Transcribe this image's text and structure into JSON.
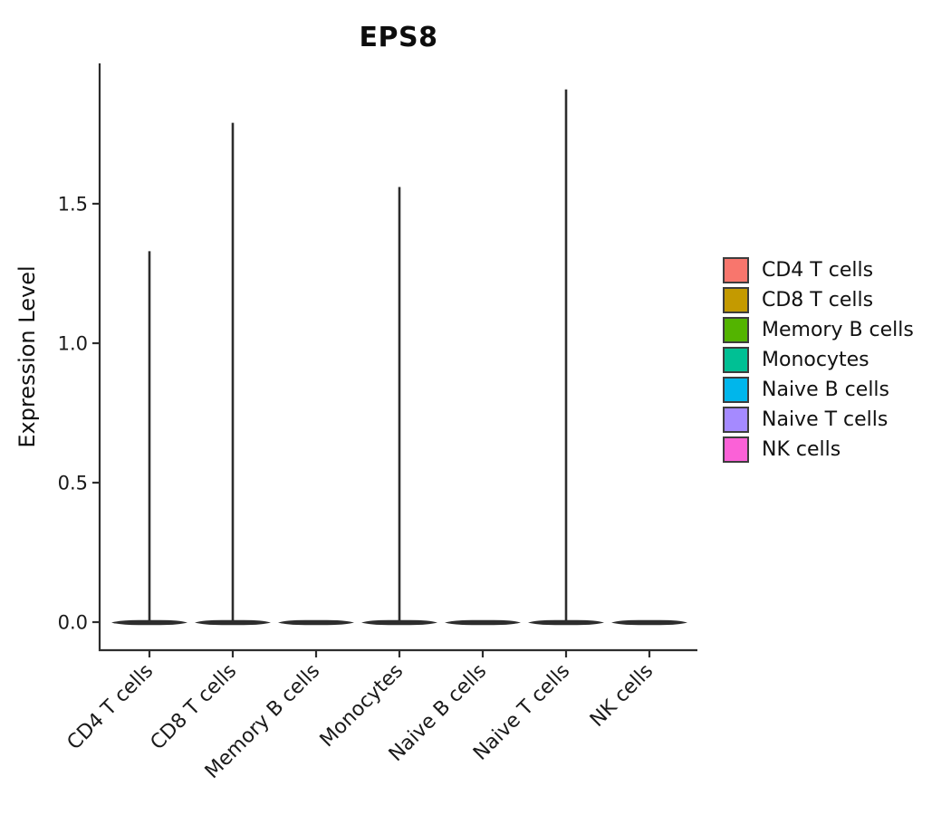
{
  "figure": {
    "title": "EPS8",
    "y_axis_label": "Expression Level"
  },
  "chart_data": {
    "type": "violin",
    "title": "EPS8",
    "xlabel": "",
    "ylabel": "Expression Level",
    "categories": [
      "CD4 T cells",
      "CD8 T cells",
      "Memory B cells",
      "Monocytes",
      "Naive B cells",
      "Naive T cells",
      "NK cells"
    ],
    "violins": [
      {
        "category": "CD4 T cells",
        "color": "#F8766D",
        "baseline_value": 0.0,
        "max_expression": 1.33
      },
      {
        "category": "CD8 T cells",
        "color": "#C49A00",
        "baseline_value": 0.0,
        "max_expression": 1.79
      },
      {
        "category": "Memory B cells",
        "color": "#53B400",
        "baseline_value": 0.0,
        "max_expression": 0.0
      },
      {
        "category": "Monocytes",
        "color": "#00C094",
        "baseline_value": 0.0,
        "max_expression": 1.56
      },
      {
        "category": "Naive B cells",
        "color": "#00B6EB",
        "baseline_value": 0.0,
        "max_expression": 0.0
      },
      {
        "category": "Naive T cells",
        "color": "#A58AFF",
        "baseline_value": 0.0,
        "max_expression": 1.91
      },
      {
        "category": "NK cells",
        "color": "#FB61D7",
        "baseline_value": 0.0,
        "max_expression": 0.0
      }
    ],
    "y_ticks": [
      {
        "value": 0.0,
        "label": "0.0"
      },
      {
        "value": 0.5,
        "label": "0.5"
      },
      {
        "value": 1.0,
        "label": "1.0"
      },
      {
        "value": 1.5,
        "label": "1.5"
      }
    ],
    "ylim": [
      -0.1,
      2.0
    ],
    "grid": false,
    "style": {
      "axis_color": "#2d2d2d",
      "violin_outline_color": "#2d2d2d",
      "text_color": "#1a1a1a"
    },
    "legend": {
      "position": "right",
      "items": [
        {
          "label": "CD4 T cells",
          "color": "#F8766D"
        },
        {
          "label": "CD8 T cells",
          "color": "#C49A00"
        },
        {
          "label": "Memory B cells",
          "color": "#53B400"
        },
        {
          "label": "Monocytes",
          "color": "#00C094"
        },
        {
          "label": "Naive B cells",
          "color": "#00B6EB"
        },
        {
          "label": "Naive T cells",
          "color": "#A58AFF"
        },
        {
          "label": "NK cells",
          "color": "#FB61D7"
        }
      ]
    }
  }
}
